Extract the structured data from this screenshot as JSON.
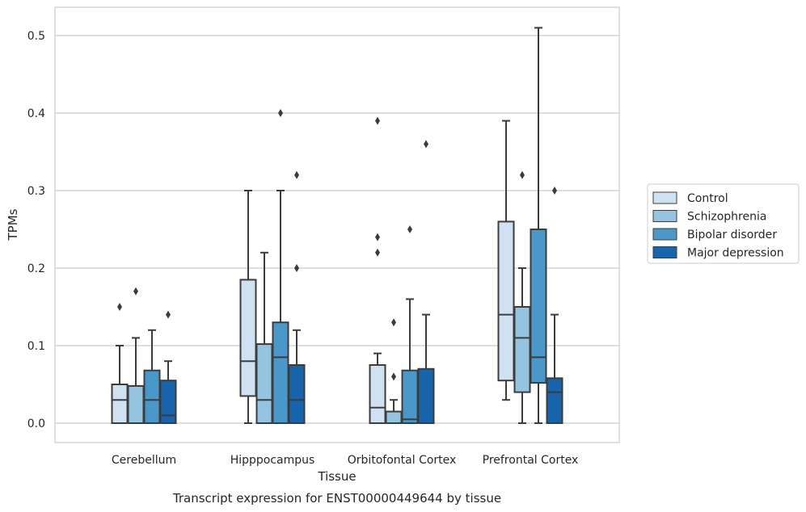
{
  "chart_data": {
    "type": "box",
    "ylabel": "TPMs",
    "xlabel": "Tissue",
    "caption": "Transcript expression for ENST00000449644 by tissue",
    "ylim": [
      -0.025,
      0.54
    ],
    "y_ticks": [
      0.0,
      0.1,
      0.2,
      0.3,
      0.4,
      0.5
    ],
    "y_tick_labels": [
      "0.0",
      "0.1",
      "0.2",
      "0.3",
      "0.4",
      "0.5"
    ],
    "grid": "horizontal",
    "legend_position": "right",
    "categories": [
      "Cerebellum",
      "Hipppocampus",
      "Orbitofontal Cortex",
      "Prefrontal Cortex"
    ],
    "series": [
      {
        "name": "Control",
        "color": "#d0e1f2",
        "boxes": [
          {
            "whislo": 0.0,
            "q1": 0.0,
            "med": 0.03,
            "q3": 0.05,
            "whishi": 0.1,
            "fliers": [
              0.15
            ]
          },
          {
            "whislo": 0.0,
            "q1": 0.035,
            "med": 0.08,
            "q3": 0.185,
            "whishi": 0.3,
            "fliers": []
          },
          {
            "whislo": 0.0,
            "q1": 0.0,
            "med": 0.02,
            "q3": 0.075,
            "whishi": 0.09,
            "fliers": [
              0.22,
              0.24,
              0.39
            ]
          },
          {
            "whislo": 0.03,
            "q1": 0.055,
            "med": 0.14,
            "q3": 0.26,
            "whishi": 0.39,
            "fliers": []
          }
        ]
      },
      {
        "name": "Schizophrenia",
        "color": "#94c4df",
        "boxes": [
          {
            "whislo": 0.0,
            "q1": 0.0,
            "med": 0.0,
            "q3": 0.048,
            "whishi": 0.11,
            "fliers": [
              0.17
            ]
          },
          {
            "whislo": 0.0,
            "q1": 0.0,
            "med": 0.03,
            "q3": 0.102,
            "whishi": 0.22,
            "fliers": []
          },
          {
            "whislo": 0.0,
            "q1": 0.0,
            "med": 0.0,
            "q3": 0.015,
            "whishi": 0.03,
            "fliers": [
              0.06,
              0.13
            ]
          },
          {
            "whislo": 0.0,
            "q1": 0.04,
            "med": 0.11,
            "q3": 0.15,
            "whishi": 0.2,
            "fliers": [
              0.32
            ]
          }
        ]
      },
      {
        "name": "Bipolar disorder",
        "color": "#4a98c9",
        "boxes": [
          {
            "whislo": 0.0,
            "q1": 0.0,
            "med": 0.03,
            "q3": 0.068,
            "whishi": 0.12,
            "fliers": []
          },
          {
            "whislo": 0.0,
            "q1": 0.0,
            "med": 0.085,
            "q3": 0.13,
            "whishi": 0.3,
            "fliers": [
              0.4
            ]
          },
          {
            "whislo": 0.0,
            "q1": 0.0,
            "med": 0.005,
            "q3": 0.068,
            "whishi": 0.16,
            "fliers": [
              0.25
            ]
          },
          {
            "whislo": 0.0,
            "q1": 0.052,
            "med": 0.085,
            "q3": 0.25,
            "whishi": 0.51,
            "fliers": []
          }
        ]
      },
      {
        "name": "Major depression",
        "color": "#1764ab",
        "boxes": [
          {
            "whislo": 0.0,
            "q1": 0.0,
            "med": 0.01,
            "q3": 0.055,
            "whishi": 0.08,
            "fliers": [
              0.14
            ]
          },
          {
            "whislo": 0.0,
            "q1": 0.0,
            "med": 0.03,
            "q3": 0.075,
            "whishi": 0.12,
            "fliers": [
              0.2,
              0.32
            ]
          },
          {
            "whislo": 0.0,
            "q1": 0.0,
            "med": 0.0,
            "q3": 0.07,
            "whishi": 0.14,
            "fliers": [
              0.36
            ]
          },
          {
            "whislo": 0.0,
            "q1": 0.0,
            "med": 0.04,
            "q3": 0.058,
            "whishi": 0.14,
            "fliers": [
              0.3
            ]
          }
        ]
      }
    ]
  }
}
